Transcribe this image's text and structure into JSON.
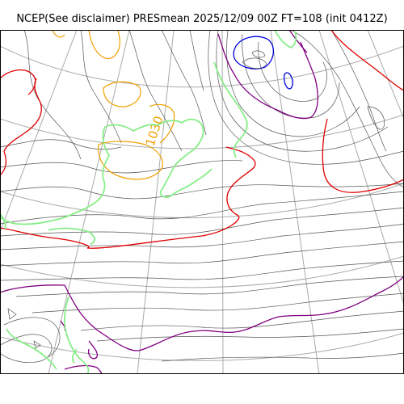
{
  "title": "NCEP(See disclaimer) PRESmean 2025/12/09 00Z FT=108 (init 0412Z)",
  "map": {
    "contour_label": "1030",
    "colors": {
      "background": "#ffffff",
      "frame": "#000000",
      "graticule": "#aaaaaa",
      "isobar": "#555555",
      "high_pressure": "#f0a000",
      "low_pressure": "#0000dd",
      "highlight_red": "#e00000",
      "highlight_purple": "#800080",
      "coastline": "#88ee88"
    }
  }
}
